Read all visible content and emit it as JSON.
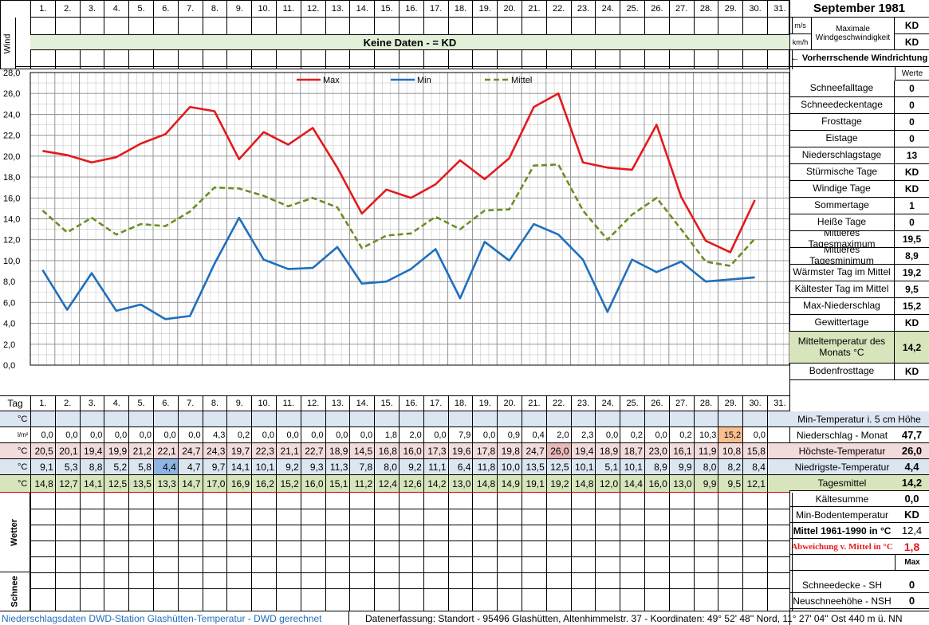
{
  "header": {
    "title": "September 1981",
    "wind_label": "Wind",
    "unit_ms": "m/s",
    "unit_kmh": "km/h",
    "max_wind_label": "Maximale Windgeschwindigkeit",
    "max_wind_ms": "KD",
    "max_wind_kmh": "KD",
    "no_data_text": "Keine Daten -  = KD",
    "prevailing_wind_label": "← Vorherrschende Windrichtung",
    "values_label": "Werte"
  },
  "days": [
    "1.",
    "2.",
    "3.",
    "4.",
    "5.",
    "6.",
    "7.",
    "8.",
    "9.",
    "10.",
    "11.",
    "12.",
    "13.",
    "14.",
    "15.",
    "16.",
    "17.",
    "18.",
    "19.",
    "20.",
    "21.",
    "22.",
    "23.",
    "24.",
    "25.",
    "26.",
    "27.",
    "28.",
    "29.",
    "30.",
    "31."
  ],
  "tag_label": "Tag",
  "stats": [
    {
      "label": "Schneefalltage",
      "value": "0"
    },
    {
      "label": "Schneedeckentage",
      "value": "0"
    },
    {
      "label": "Frosttage",
      "value": "0"
    },
    {
      "label": "Eistage",
      "value": "0"
    },
    {
      "label": "Niederschlagstage",
      "value": "13"
    },
    {
      "label": "Stürmische Tage",
      "value": "KD"
    },
    {
      "label": "Windige Tage",
      "value": "KD"
    },
    {
      "label": "Sommertage",
      "value": "1"
    },
    {
      "label": "Heiße Tage",
      "value": "0"
    },
    {
      "label": "Mittleres Tagesmaximum",
      "value": "19,5"
    },
    {
      "label": "Mittleres Tagesminimum",
      "value": "8,9"
    },
    {
      "label": "Wärmster Tag im Mittel",
      "value": "19,2"
    },
    {
      "label": "Kältester Tag im Mittel",
      "value": "9,5"
    },
    {
      "label": "Max-Niederschlag",
      "value": "15,2"
    },
    {
      "label": "Gewittertage",
      "value": "KD"
    },
    {
      "label": "Mitteltemperatur des Monats °C",
      "value": "14,2"
    },
    {
      "label": "Bodenfrosttage",
      "value": "KD"
    }
  ],
  "lower_stats": [
    {
      "label": "Min-Temperatur i. 5 cm Höhe",
      "value": ""
    },
    {
      "label": "Niederschlag - Monat",
      "value": "47,7"
    },
    {
      "label": "Höchste-Temperatur",
      "value": "26,0"
    },
    {
      "label": "Niedrigste-Temperatur",
      "value": "4,4"
    },
    {
      "label": "Tagesmittel",
      "value": "14,2"
    },
    {
      "label": "Kältesumme",
      "value": "0,0"
    },
    {
      "label": "Min-Bodentemperatur",
      "value": "KD"
    },
    {
      "label": "Mittel 1961-1990 in °C",
      "value": "12,4"
    },
    {
      "label": "Abweichung v. Mittel in °C",
      "value": "1,8"
    },
    {
      "label": "",
      "value": "Max"
    },
    {
      "label": "Schneedecke -   SH",
      "value": "0"
    },
    {
      "label": "Neuschneehöhe - NSH",
      "value": "0"
    }
  ],
  "row_units": {
    "soil": "°C",
    "precip": "l/m²",
    "max": "°C",
    "min": "°C",
    "mean": "°C"
  },
  "table": {
    "precip": [
      "0,0",
      "0,0",
      "0,0",
      "0,0",
      "0,0",
      "0,0",
      "0,0",
      "4,3",
      "0,2",
      "0,0",
      "0,0",
      "0,0",
      "0,0",
      "0,0",
      "1,8",
      "2,0",
      "0,0",
      "7,9",
      "0,0",
      "0,9",
      "0,4",
      "2,0",
      "2,3",
      "0,0",
      "0,2",
      "0,0",
      "0,2",
      "10,3",
      "15,2",
      "0,0",
      ""
    ],
    "max": [
      "20,5",
      "20,1",
      "19,4",
      "19,9",
      "21,2",
      "22,1",
      "24,7",
      "24,3",
      "19,7",
      "22,3",
      "21,1",
      "22,7",
      "18,9",
      "14,5",
      "16,8",
      "16,0",
      "17,3",
      "19,6",
      "17,8",
      "19,8",
      "24,7",
      "26,0",
      "19,4",
      "18,9",
      "18,7",
      "23,0",
      "16,1",
      "11,9",
      "10,8",
      "15,8",
      ""
    ],
    "min": [
      "9,1",
      "5,3",
      "8,8",
      "5,2",
      "5,8",
      "4,4",
      "4,7",
      "9,7",
      "14,1",
      "10,1",
      "9,2",
      "9,3",
      "11,3",
      "7,8",
      "8,0",
      "9,2",
      "11,1",
      "6,4",
      "11,8",
      "10,0",
      "13,5",
      "12,5",
      "10,1",
      "5,1",
      "10,1",
      "8,9",
      "9,9",
      "8,0",
      "8,2",
      "8,4",
      ""
    ],
    "mean": [
      "14,8",
      "12,7",
      "14,1",
      "12,5",
      "13,5",
      "13,3",
      "14,7",
      "17,0",
      "16,9",
      "16,2",
      "15,2",
      "16,0",
      "15,1",
      "11,2",
      "12,4",
      "12,6",
      "14,2",
      "13,0",
      "14,8",
      "14,9",
      "19,1",
      "19,2",
      "14,8",
      "12,0",
      "14,4",
      "16,0",
      "13,0",
      "9,9",
      "9,5",
      "12,1",
      ""
    ]
  },
  "side_labels": {
    "weather": "Wetter",
    "snow": "Schnee"
  },
  "footer": {
    "left": "Niederschlagsdaten DWD-Station Glashütten-Temperatur -  DWD gerechnet",
    "right": "Datenerfassung: Standort -  95496  Glashütten, Altenhimmelstr. 37 - Koordinaten: 49° 52' 48'' Nord,   11° 27' 04'' Ost   440 m ü. NN"
  },
  "colors": {
    "max": "#e31a1c",
    "min": "#1f6fbf",
    "mean": "#6b8e23",
    "header_green": "#e2efd9",
    "row_blue": "#dce6f1",
    "row_red": "#f2dcdb",
    "row_green": "#d7e4bc",
    "hi_max": "#e6b8b7",
    "hi_min": "#8db4e2",
    "hi_precip": "#fabf8f"
  },
  "chart_data": {
    "type": "line",
    "title": "",
    "xlabel": "",
    "ylabel": "",
    "x": [
      1,
      2,
      3,
      4,
      5,
      6,
      7,
      8,
      9,
      10,
      11,
      12,
      13,
      14,
      15,
      16,
      17,
      18,
      19,
      20,
      21,
      22,
      23,
      24,
      25,
      26,
      27,
      28,
      29,
      30
    ],
    "ylim": [
      0,
      28
    ],
    "y_ticks": [
      "0,0",
      "2,0",
      "4,0",
      "6,0",
      "8,0",
      "10,0",
      "12,0",
      "14,0",
      "16,0",
      "18,0",
      "20,0",
      "22,0",
      "24,0",
      "26,0",
      "28,0"
    ],
    "grid": true,
    "legend_placement": "top",
    "series": [
      {
        "name": "Max",
        "color": "#e31a1c",
        "dash": false,
        "values": [
          20.5,
          20.1,
          19.4,
          19.9,
          21.2,
          22.1,
          24.7,
          24.3,
          19.7,
          22.3,
          21.1,
          22.7,
          18.9,
          14.5,
          16.8,
          16.0,
          17.3,
          19.6,
          17.8,
          19.8,
          24.7,
          26.0,
          19.4,
          18.9,
          18.7,
          23.0,
          16.1,
          11.9,
          10.8,
          15.8
        ]
      },
      {
        "name": "Min",
        "color": "#1f6fbf",
        "dash": false,
        "values": [
          9.1,
          5.3,
          8.8,
          5.2,
          5.8,
          4.4,
          4.7,
          9.7,
          14.1,
          10.1,
          9.2,
          9.3,
          11.3,
          7.8,
          8.0,
          9.2,
          11.1,
          6.4,
          11.8,
          10.0,
          13.5,
          12.5,
          10.1,
          5.1,
          10.1,
          8.9,
          9.9,
          8.0,
          8.2,
          8.4
        ]
      },
      {
        "name": "Mittel",
        "color": "#6b8e23",
        "dash": true,
        "values": [
          14.8,
          12.7,
          14.1,
          12.5,
          13.5,
          13.3,
          14.7,
          17.0,
          16.9,
          16.2,
          15.2,
          16.0,
          15.1,
          11.2,
          12.4,
          12.6,
          14.2,
          13.0,
          14.8,
          14.9,
          19.1,
          19.2,
          14.8,
          12.0,
          14.4,
          16.0,
          13.0,
          9.9,
          9.5,
          12.1
        ]
      }
    ]
  }
}
